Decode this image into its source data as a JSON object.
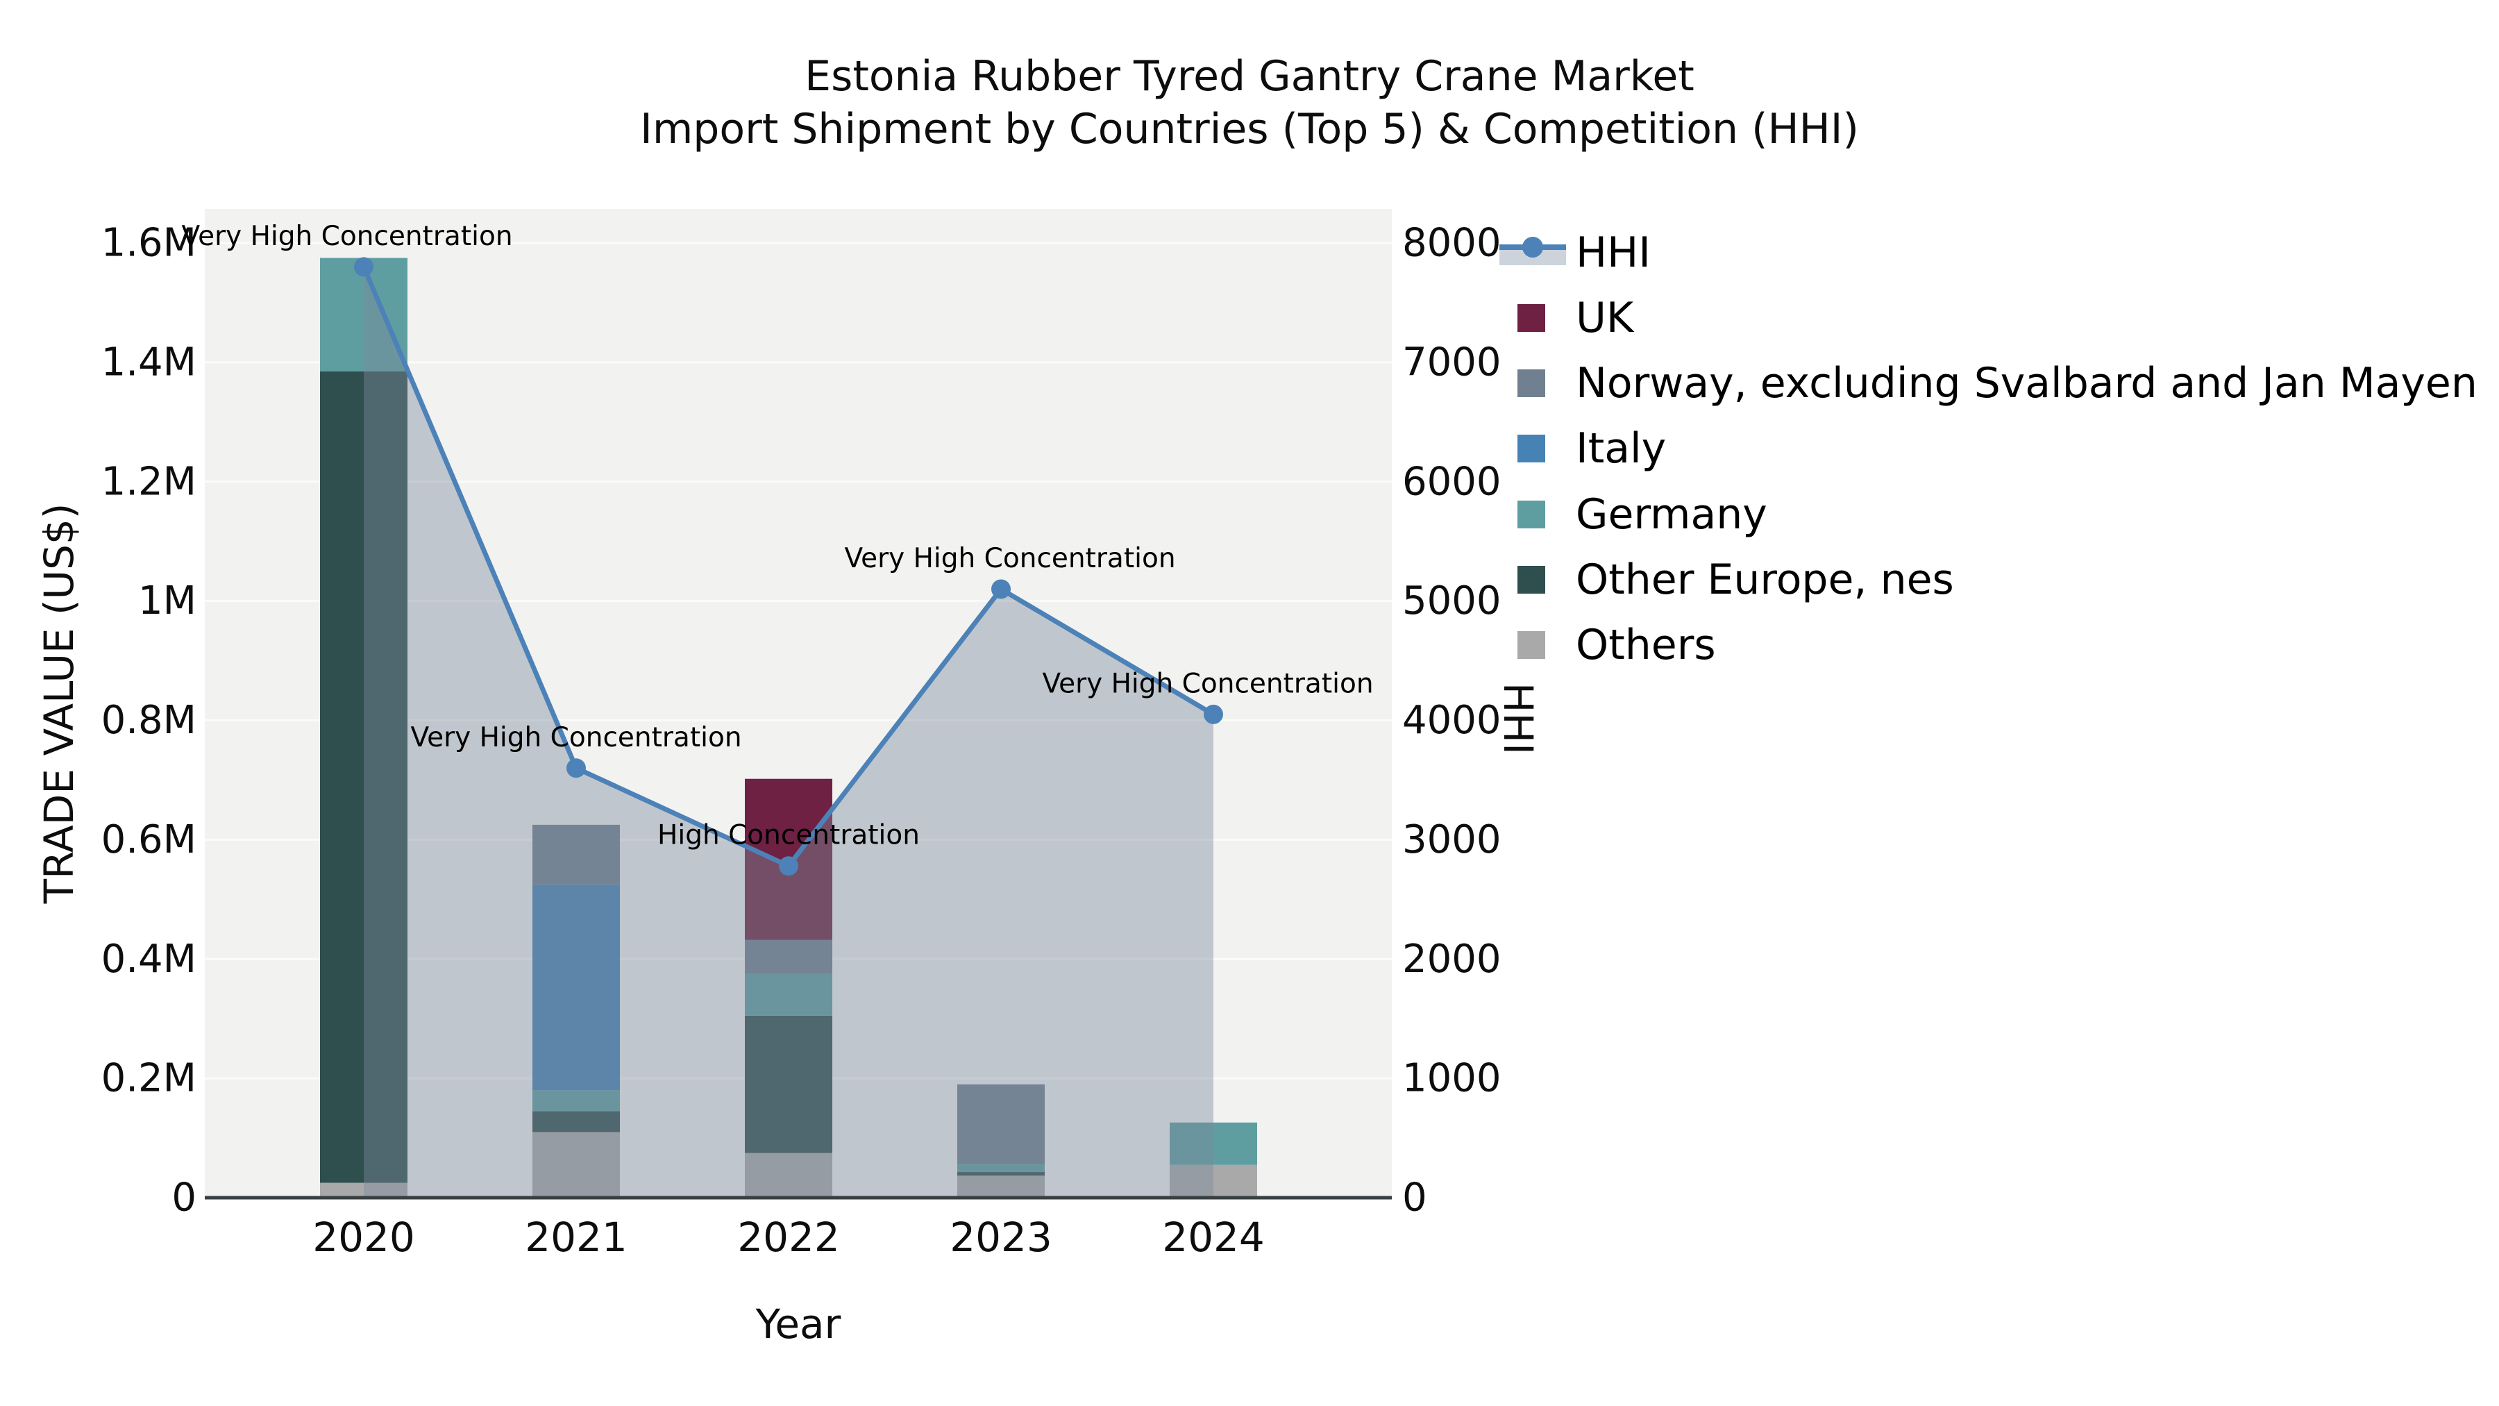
{
  "title": {
    "line1": "Estonia Rubber Tyred Gantry Crane Market",
    "line2": "Import Shipment by Countries (Top 5) & Competition (HHI)"
  },
  "axes": {
    "left_title": "TRADE VALUE (US$)",
    "right_title": "HHI",
    "x_title": "Year"
  },
  "legend": {
    "items": [
      {
        "label": "HHI",
        "type": "line",
        "color": "#4c82b7",
        "fill": "#ccd3da"
      },
      {
        "label": "UK",
        "type": "box",
        "color": "#6e2142"
      },
      {
        "label": "Norway, excluding Svalbard and Jan Mayen",
        "type": "box",
        "color": "#708090"
      },
      {
        "label": "Italy",
        "type": "box",
        "color": "#4682b4"
      },
      {
        "label": "Germany",
        "type": "box",
        "color": "#5f9ea0"
      },
      {
        "label": "Other Europe, nes",
        "type": "box",
        "color": "#2f4f4f"
      },
      {
        "label": "Others",
        "type": "box",
        "color": "#a9a9a9"
      }
    ]
  },
  "chart_data": {
    "type": "bar",
    "subtype": "stacked-bars-with-line",
    "title": "Estonia Rubber Tyred Gantry Crane Market — Import Shipment by Countries (Top 5) & Competition (HHI)",
    "x": [
      "2020",
      "2021",
      "2022",
      "2023",
      "2024"
    ],
    "xlabel": "Year",
    "ylabel_left": "TRADE VALUE (US$)",
    "ylabel_right": "HHI",
    "ylim_left": [
      0,
      1600000
    ],
    "ylim_right": [
      0,
      8000
    ],
    "grid": true,
    "legend_position": "upper-right-outside",
    "y_left_ticks": [
      {
        "value": 1600000,
        "label": "1.6M"
      },
      {
        "value": 1400000,
        "label": "1.4M"
      },
      {
        "value": 1200000,
        "label": "1.2M"
      },
      {
        "value": 1000000,
        "label": "1M"
      },
      {
        "value": 800000,
        "label": "0.8M"
      },
      {
        "value": 600000,
        "label": "0.6M"
      },
      {
        "value": 400000,
        "label": "0.4M"
      },
      {
        "value": 200000,
        "label": "0.2M"
      },
      {
        "value": 0,
        "label": "0"
      }
    ],
    "y_right_ticks": [
      {
        "value": 8000,
        "label": "8000"
      },
      {
        "value": 7000,
        "label": "7000"
      },
      {
        "value": 6000,
        "label": "6000"
      },
      {
        "value": 5000,
        "label": "5000"
      },
      {
        "value": 4000,
        "label": "4000"
      },
      {
        "value": 3000,
        "label": "3000"
      },
      {
        "value": 2000,
        "label": "2000"
      },
      {
        "value": 1000,
        "label": "1000"
      },
      {
        "value": 0,
        "label": "0"
      }
    ],
    "bar_series": [
      {
        "name": "Others",
        "color": "#a9a9a9",
        "values": [
          25000,
          110000,
          75000,
          37000,
          55000
        ]
      },
      {
        "name": "Other Europe, nes",
        "color": "#2f4f4f",
        "values": [
          1360000,
          35000,
          230000,
          6000,
          0
        ]
      },
      {
        "name": "Germany",
        "color": "#5f9ea0",
        "values": [
          190000,
          35000,
          70000,
          14000,
          71000
        ]
      },
      {
        "name": "Italy",
        "color": "#4682b4",
        "values": [
          0,
          345000,
          0,
          0,
          0
        ]
      },
      {
        "name": "Norway, excluding Svalbard and Jan Mayen",
        "color": "#708090",
        "values": [
          0,
          100000,
          57000,
          133000,
          0
        ]
      },
      {
        "name": "UK",
        "color": "#6e2142",
        "values": [
          0,
          0,
          270000,
          0,
          0
        ]
      }
    ],
    "line_series": {
      "name": "HHI",
      "axis": "right",
      "color": "#4c82b7",
      "area_fill": "rgba(125,139,156,0.42)",
      "values": [
        7800,
        3600,
        2780,
        5100,
        4050
      ]
    },
    "annotations": [
      {
        "text": "Very High Concentration",
        "year": "2020"
      },
      {
        "text": "Very High Concentration",
        "year": "2021"
      },
      {
        "text": "High Concentration",
        "year": "2022"
      },
      {
        "text": "Very High Concentration",
        "year": "2023"
      },
      {
        "text": "Very High Concentration",
        "year": "2024"
      }
    ]
  }
}
